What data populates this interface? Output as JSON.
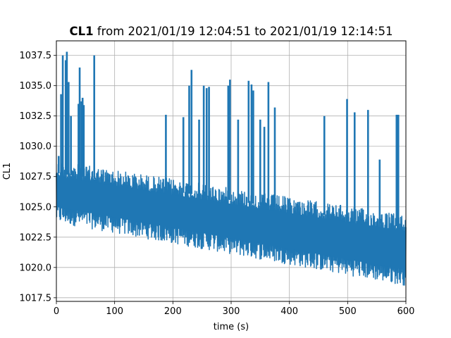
{
  "chart_data": {
    "type": "line",
    "title_bold": "CL1",
    "title_rest": " from 2021/01/19 12:04:51 to 2021/01/19 12:14:51",
    "xlabel": "time (s)",
    "ylabel": "CL1",
    "xlim": [
      0,
      600
    ],
    "ylim": [
      1017.2,
      1038.7
    ],
    "xticks": [
      0,
      100,
      200,
      300,
      400,
      500,
      600
    ],
    "yticks": [
      1017.5,
      1020.0,
      1022.5,
      1025.0,
      1027.5,
      1030.0,
      1032.5,
      1035.0,
      1037.5
    ],
    "grid": true,
    "series_color": "#1f77b4",
    "series": [
      {
        "x": [
          0,
          600
        ],
        "y": [
          1026.5,
          1021.3
        ],
        "band_upper": [
          1028.8,
          1024.3
        ],
        "band_lower": [
          1023.7,
          1018.5
        ],
        "spikes": [
          {
            "x": 4,
            "y": 1029.2
          },
          {
            "x": 8,
            "y": 1034.3
          },
          {
            "x": 11,
            "y": 1037.5
          },
          {
            "x": 16,
            "y": 1037.1
          },
          {
            "x": 18,
            "y": 1037.8
          },
          {
            "x": 21,
            "y": 1035.3
          },
          {
            "x": 25,
            "y": 1032.5
          },
          {
            "x": 38,
            "y": 1033.5
          },
          {
            "x": 40,
            "y": 1036.5
          },
          {
            "x": 43,
            "y": 1033.7
          },
          {
            "x": 45,
            "y": 1034.0
          },
          {
            "x": 47,
            "y": 1033.4
          },
          {
            "x": 65,
            "y": 1037.5
          },
          {
            "x": 188,
            "y": 1032.6
          },
          {
            "x": 218,
            "y": 1032.4
          },
          {
            "x": 228,
            "y": 1035.0
          },
          {
            "x": 232,
            "y": 1036.3
          },
          {
            "x": 245,
            "y": 1032.2
          },
          {
            "x": 253,
            "y": 1035.0
          },
          {
            "x": 258,
            "y": 1034.8
          },
          {
            "x": 262,
            "y": 1034.9
          },
          {
            "x": 295,
            "y": 1035.0
          },
          {
            "x": 298,
            "y": 1035.5
          },
          {
            "x": 312,
            "y": 1032.2
          },
          {
            "x": 330,
            "y": 1035.4
          },
          {
            "x": 335,
            "y": 1035.1
          },
          {
            "x": 338,
            "y": 1034.6
          },
          {
            "x": 350,
            "y": 1032.2
          },
          {
            "x": 357,
            "y": 1031.6
          },
          {
            "x": 364,
            "y": 1035.3
          },
          {
            "x": 375,
            "y": 1033.2
          },
          {
            "x": 460,
            "y": 1032.5
          },
          {
            "x": 499,
            "y": 1033.9
          },
          {
            "x": 512,
            "y": 1032.8
          },
          {
            "x": 535,
            "y": 1033.0
          },
          {
            "x": 555,
            "y": 1028.9
          },
          {
            "x": 584,
            "y": 1032.6
          },
          {
            "x": 587,
            "y": 1032.6
          }
        ]
      }
    ]
  }
}
